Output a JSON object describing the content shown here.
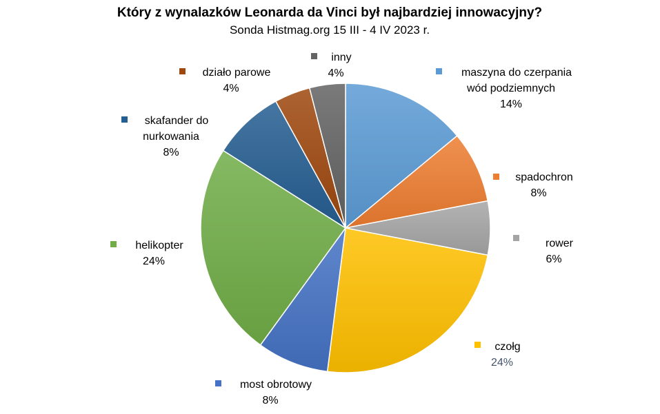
{
  "chart_data": {
    "type": "pie",
    "title": "Który z wynalazków Leonarda da Vinci był najbardziej innowacyjny?",
    "subtitle": "Sonda Histmag.org 15 III - 4 IV 2023 r.",
    "unit": "%",
    "legend": "none",
    "slices": [
      {
        "label_lines": [
          "maszyna do czerpania",
          "wód podziemnych"
        ],
        "value": 14,
        "value_label": "14%",
        "color": "#5b9bd5"
      },
      {
        "label_lines": [
          "spadochron"
        ],
        "value": 8,
        "value_label": "8%",
        "color": "#ed7d31"
      },
      {
        "label_lines": [
          "rower"
        ],
        "value": 6,
        "value_label": "6%",
        "color": "#a5a5a5"
      },
      {
        "label_lines": [
          "czołg"
        ],
        "value": 24,
        "value_label": "24%",
        "color": "#ffc000"
      },
      {
        "label_lines": [
          "most obrotowy"
        ],
        "value": 8,
        "value_label": "8%",
        "color": "#4472c4"
      },
      {
        "label_lines": [
          "helikopter"
        ],
        "value": 24,
        "value_label": "24%",
        "color": "#70ad47"
      },
      {
        "label_lines": [
          "skafander do",
          "nurkowania"
        ],
        "value": 8,
        "value_label": "8%",
        "color": "#255e91"
      },
      {
        "label_lines": [
          "działo parowe"
        ],
        "value": 4,
        "value_label": "4%",
        "color": "#9e480e"
      },
      {
        "label_lines": [
          "inny"
        ],
        "value": 4,
        "value_label": "4%",
        "color": "#636363"
      }
    ]
  }
}
